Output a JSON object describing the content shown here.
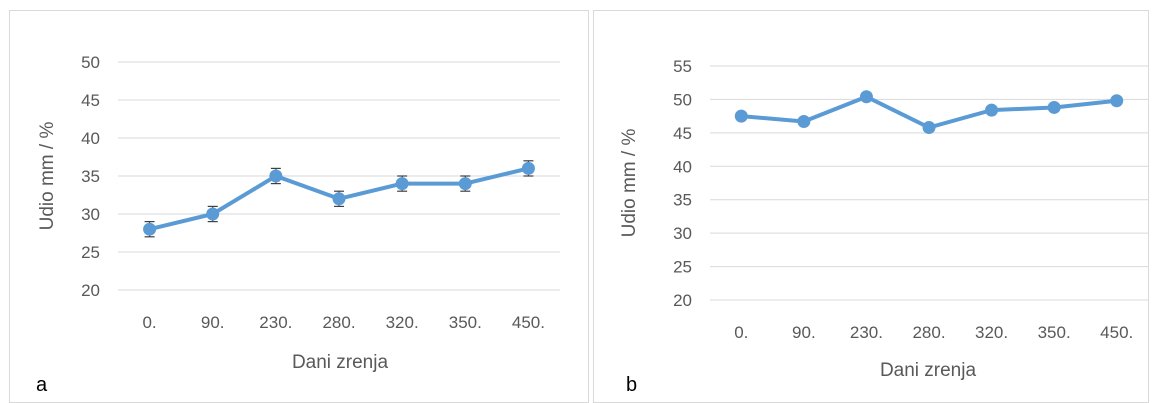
{
  "chart_data": [
    {
      "type": "line",
      "panel_label": "a",
      "xlabel": "Dani zrenja",
      "ylabel": "Udio mm / %",
      "categories": [
        "0.",
        "90.",
        "230.",
        "280.",
        "320.",
        "350.",
        "450."
      ],
      "y_ticks": [
        "20",
        "25",
        "30",
        "35",
        "40",
        "45",
        "50"
      ],
      "ylim": [
        20,
        50
      ],
      "grid": true,
      "error_bars": true,
      "series": [
        {
          "values": [
            28,
            30,
            35,
            32,
            34,
            34,
            36
          ],
          "errors": [
            1,
            1,
            1,
            1,
            1,
            1,
            1
          ],
          "color": "#5b9bd5"
        }
      ]
    },
    {
      "type": "line",
      "panel_label": "b",
      "xlabel": "Dani zrenja",
      "ylabel": "Udio mm / %",
      "categories": [
        "0.",
        "90.",
        "230.",
        "280.",
        "320.",
        "350.",
        "450."
      ],
      "y_ticks": [
        "20",
        "25",
        "30",
        "35",
        "40",
        "45",
        "50",
        "55"
      ],
      "ylim": [
        20,
        55
      ],
      "grid": true,
      "error_bars": false,
      "series": [
        {
          "values": [
            47.5,
            46.7,
            50.4,
            45.8,
            48.4,
            48.8,
            49.8
          ],
          "color": "#5b9bd5"
        }
      ]
    }
  ]
}
